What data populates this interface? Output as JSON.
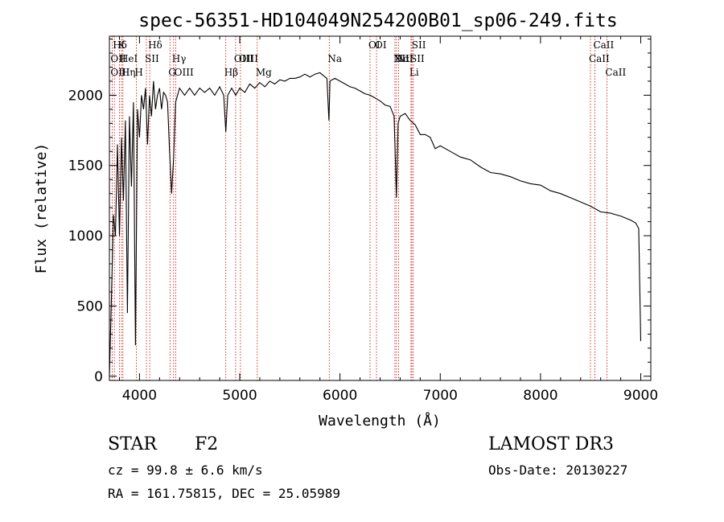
{
  "chart_data": {
    "type": "line",
    "title": "spec-56351-HD104049N254200B01_sp06-249.fits",
    "xlabel": "Wavelength (Å)",
    "ylabel": "Flux (relative)",
    "xlim": [
      3700,
      9100
    ],
    "ylim": [
      -30,
      2420
    ],
    "x_ticks": [
      4000,
      5000,
      6000,
      7000,
      8000,
      9000
    ],
    "y_ticks": [
      0,
      500,
      1000,
      1500,
      2000
    ],
    "grid": false,
    "series": [
      {
        "name": "spectrum",
        "x": [
          3700,
          3720,
          3740,
          3760,
          3780,
          3800,
          3820,
          3840,
          3860,
          3880,
          3900,
          3920,
          3940,
          3960,
          3980,
          4000,
          4020,
          4040,
          4060,
          4080,
          4100,
          4120,
          4140,
          4160,
          4180,
          4200,
          4220,
          4240,
          4260,
          4280,
          4300,
          4320,
          4340,
          4360,
          4380,
          4400,
          4450,
          4500,
          4550,
          4600,
          4650,
          4700,
          4750,
          4800,
          4840,
          4861,
          4880,
          4920,
          4960,
          5000,
          5050,
          5100,
          5150,
          5200,
          5250,
          5300,
          5350,
          5400,
          5450,
          5500,
          5550,
          5600,
          5650,
          5700,
          5750,
          5800,
          5850,
          5870,
          5890,
          5900,
          5920,
          5950,
          6000,
          6050,
          6100,
          6150,
          6200,
          6250,
          6300,
          6350,
          6400,
          6450,
          6500,
          6540,
          6563,
          6580,
          6600,
          6650,
          6700,
          6750,
          6800,
          6850,
          6900,
          6950,
          7000,
          7100,
          7200,
          7300,
          7400,
          7500,
          7600,
          7700,
          7800,
          7900,
          8000,
          8100,
          8200,
          8300,
          8400,
          8500,
          8600,
          8700,
          8800,
          8900,
          8950,
          8980,
          9000
        ],
        "values": [
          0,
          550,
          1150,
          1000,
          1650,
          1000,
          1700,
          1250,
          1820,
          450,
          1850,
          1350,
          1950,
          220,
          1900,
          1700,
          2000,
          1900,
          2050,
          1650,
          2000,
          1850,
          2100,
          1900,
          2000,
          2050,
          1900,
          2020,
          2000,
          1950,
          1600,
          1300,
          1550,
          1950,
          2000,
          2050,
          2000,
          2050,
          2000,
          2050,
          2020,
          2050,
          2000,
          2060,
          2000,
          1740,
          2000,
          2050,
          2000,
          2050,
          2020,
          2080,
          2050,
          2090,
          2060,
          2100,
          2080,
          2110,
          2100,
          2120,
          2120,
          2130,
          2150,
          2130,
          2150,
          2160,
          2130,
          2120,
          1820,
          2100,
          2110,
          2120,
          2100,
          2080,
          2060,
          2050,
          2030,
          2010,
          2000,
          1980,
          1960,
          1930,
          1920,
          1850,
          1270,
          1800,
          1850,
          1870,
          1820,
          1790,
          1720,
          1720,
          1700,
          1620,
          1640,
          1600,
          1560,
          1540,
          1490,
          1450,
          1440,
          1420,
          1390,
          1370,
          1360,
          1320,
          1300,
          1270,
          1240,
          1210,
          1170,
          1160,
          1140,
          1110,
          1090,
          1050,
          250
        ]
      }
    ],
    "annotations": [
      {
        "label": "Hδ",
        "wavelength": 3750
      },
      {
        "label": "K",
        "wavelength": 3800
      },
      {
        "label": "Hδ",
        "wavelength": 4102
      },
      {
        "label": "OII",
        "wavelength": 3727
      },
      {
        "label": "HeI",
        "wavelength": 3820
      },
      {
        "label": "SII",
        "wavelength": 4069
      },
      {
        "label": "OIII",
        "wavelength": 3727
      },
      {
        "label": "Hη",
        "wavelength": 3835
      },
      {
        "label": "H",
        "wavelength": 3968
      },
      {
        "label": "OIII",
        "wavelength": 4363
      },
      {
        "label": "Hγ",
        "wavelength": 4340
      },
      {
        "label": "G",
        "wavelength": 4304
      },
      {
        "label": "Hβ",
        "wavelength": 4861
      },
      {
        "label": "OIII",
        "wavelength": 4959
      },
      {
        "label": "OIII",
        "wavelength": 5007
      },
      {
        "label": "Mg",
        "wavelength": 5175
      },
      {
        "label": "Na",
        "wavelength": 5893
      },
      {
        "label": "OI",
        "wavelength": 6300
      },
      {
        "label": "OI",
        "wavelength": 6364
      },
      {
        "label": "Hα",
        "wavelength": 6563
      },
      {
        "label": "NII",
        "wavelength": 6548
      },
      {
        "label": "NII",
        "wavelength": 6584
      },
      {
        "label": "SII",
        "wavelength": 6717
      },
      {
        "label": "Li",
        "wavelength": 6708
      },
      {
        "label": "SII",
        "wavelength": 6731
      },
      {
        "label": "CaII",
        "wavelength": 8542
      },
      {
        "label": "CaII",
        "wavelength": 8498
      },
      {
        "label": "CaII",
        "wavelength": 8662
      }
    ]
  },
  "info": {
    "object_class": "STAR",
    "subclass": "F2",
    "survey": "LAMOST DR3",
    "cz": "cz = 99.8 ± 6.6 km/s",
    "obs_date": "Obs-Date: 20130227",
    "coords": "RA = 161.75815, DEC =  25.05989"
  },
  "colors": {
    "line": "#000000",
    "marker": "#cc0000"
  }
}
